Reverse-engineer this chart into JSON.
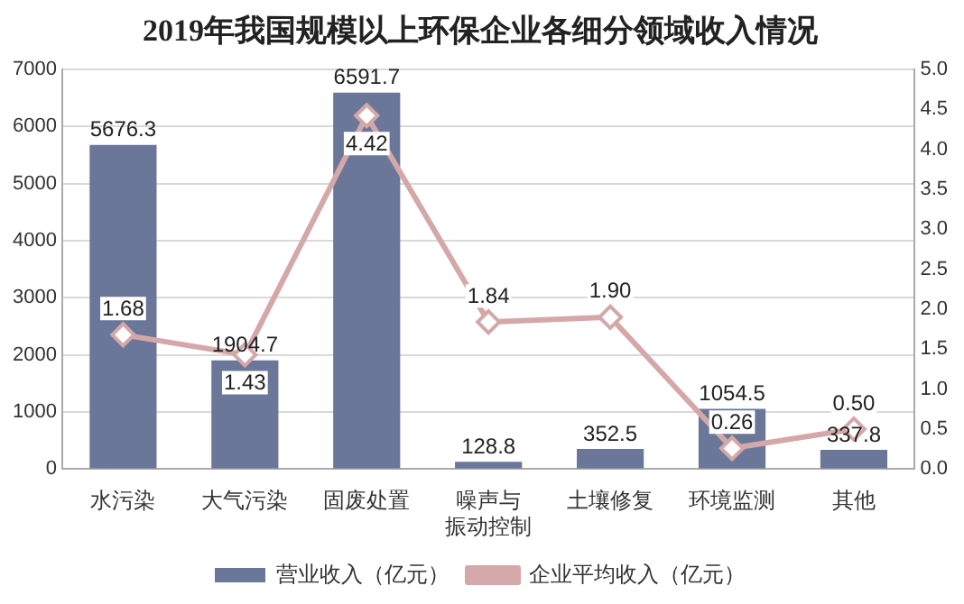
{
  "chart_data": {
    "type": "bar",
    "title": "2019年我国规模以上环保企业各细分领域收入情况",
    "categories": [
      "水污染",
      "大气污染",
      "固废处置",
      "噪声与振动控制",
      "土壤修复",
      "环境监测",
      "其他"
    ],
    "series": [
      {
        "name": "营业收入（亿元）",
        "color": "#6b7799",
        "values": [
          5676.3,
          1904.7,
          6591.7,
          128.8,
          352.5,
          1054.5,
          337.8
        ],
        "value_labels": [
          "5676.3",
          "1904.7",
          "6591.7",
          "128.8",
          "352.5",
          "1054.5",
          "337.8"
        ]
      },
      {
        "name": "企业平均收入（亿元）",
        "type": "line",
        "axis": "y2",
        "color": "#d4a8a8",
        "values": [
          1.68,
          1.43,
          4.42,
          1.84,
          1.9,
          0.26,
          0.5
        ],
        "value_labels": [
          "1.68",
          "1.43",
          "4.42",
          "1.84",
          "1.90",
          "0.26",
          "0.50"
        ]
      }
    ],
    "ylim": [
      0,
      7000
    ],
    "yticks": [
      0,
      1000,
      2000,
      3000,
      4000,
      5000,
      6000,
      7000
    ],
    "y2lim": [
      0,
      5
    ],
    "y2ticks": [
      {
        "value": 0,
        "label": "0.0"
      },
      {
        "value": 0.5,
        "label": "0.5"
      },
      {
        "value": 1,
        "label": "1.0"
      },
      {
        "value": 1.5,
        "label": "1.5"
      },
      {
        "value": 2,
        "label": "2.0"
      },
      {
        "value": 2.5,
        "label": "2.5"
      },
      {
        "value": 3,
        "label": "3.0"
      },
      {
        "value": 3.5,
        "label": "3.5"
      },
      {
        "value": 4,
        "label": "4.0"
      },
      {
        "value": 4.5,
        "label": "4.5"
      },
      {
        "value": 5,
        "label": "5.0"
      }
    ],
    "grid": "y",
    "legend": "bottom",
    "marker": "diamond",
    "line_style": "solid"
  }
}
